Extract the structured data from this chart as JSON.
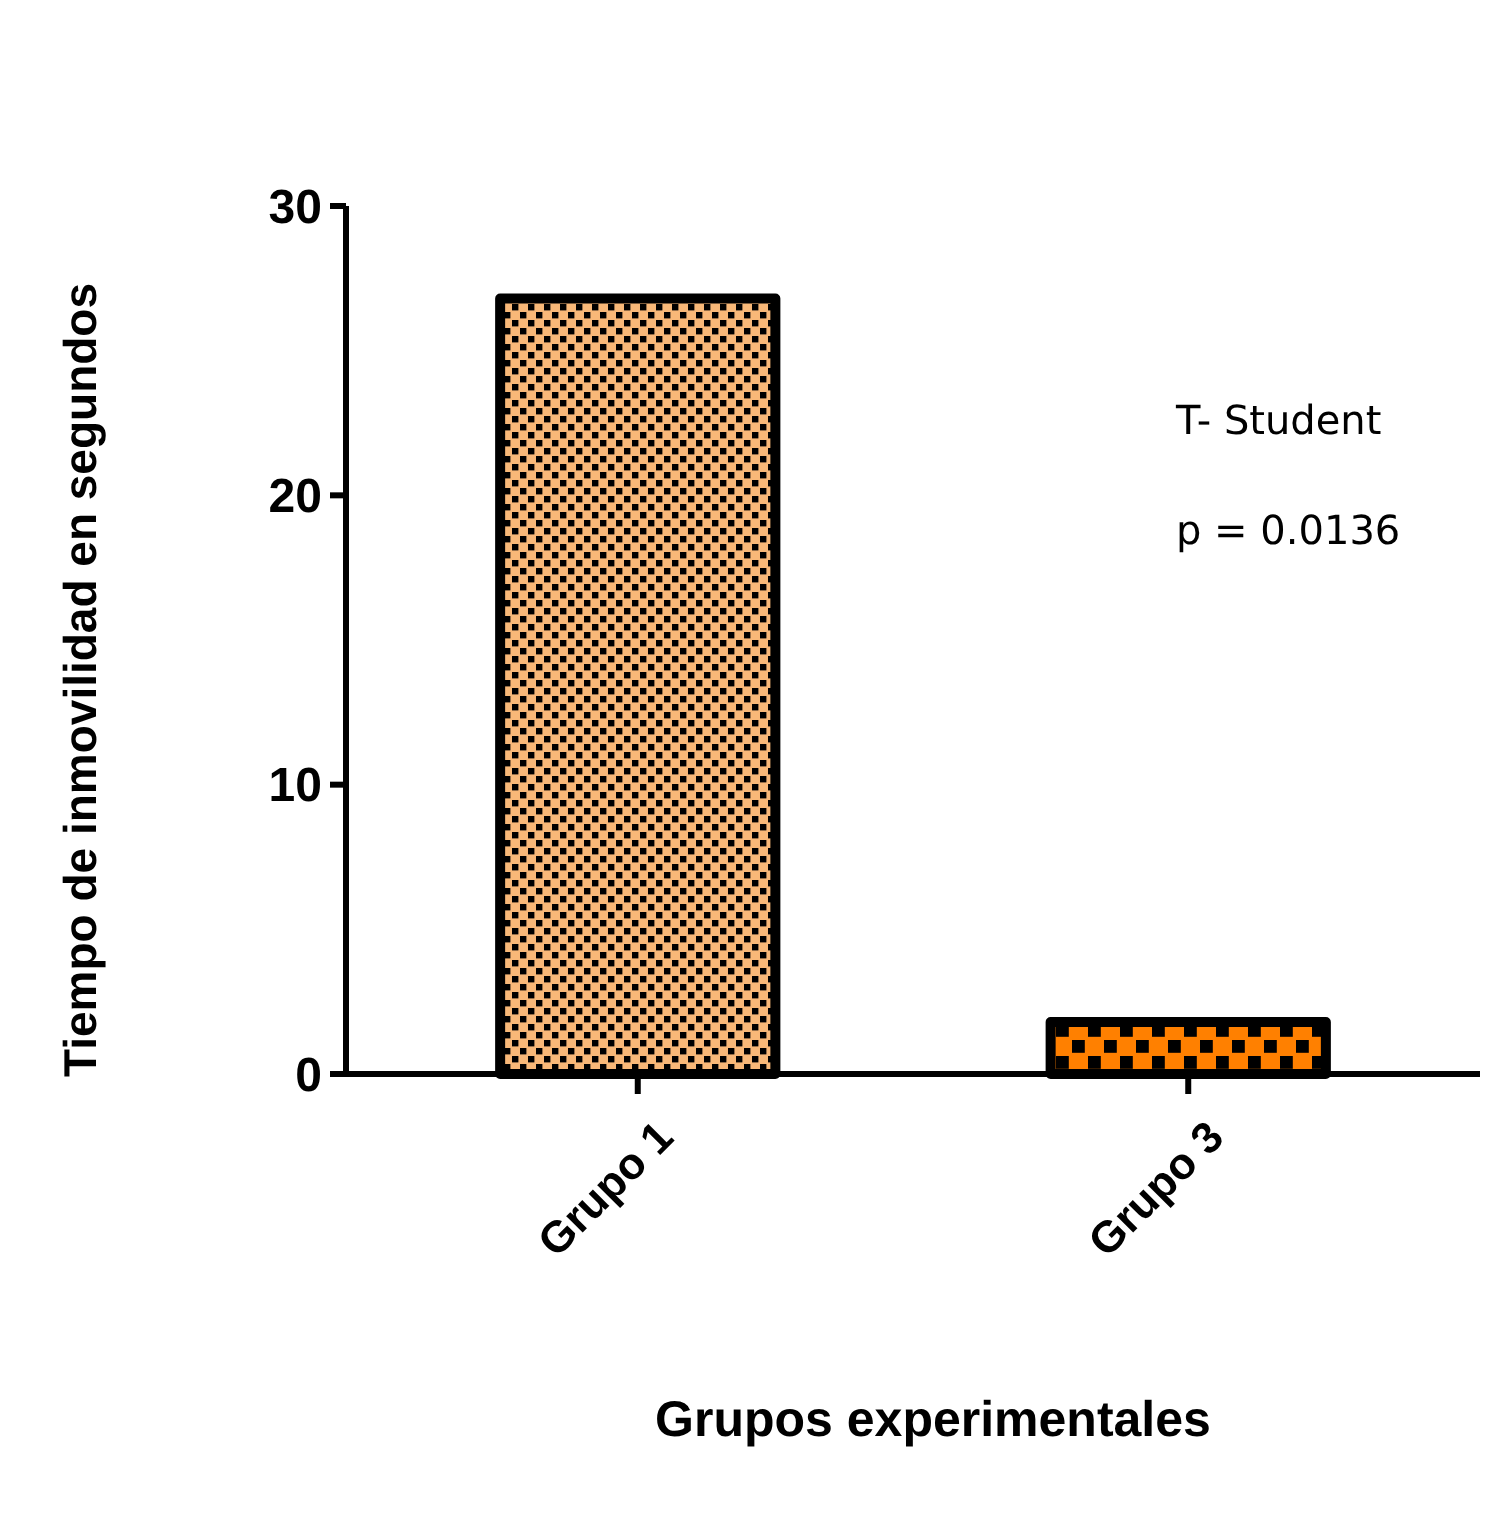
{
  "chart_data": {
    "type": "bar",
    "xlabel": "Grupos experimentales",
    "ylabel": "Tiempo de inmovilidad en segundos",
    "categories": [
      "Grupo 1",
      "Grupo 3"
    ],
    "values": [
      26.8,
      1.8
    ],
    "colors": [
      "#f8b878",
      "#ff8000"
    ],
    "ylim": [
      0,
      30
    ],
    "yticks": [
      0,
      10,
      20,
      30
    ],
    "grid": false,
    "annotations": [
      "T- Student",
      "p = 0.0136"
    ]
  }
}
